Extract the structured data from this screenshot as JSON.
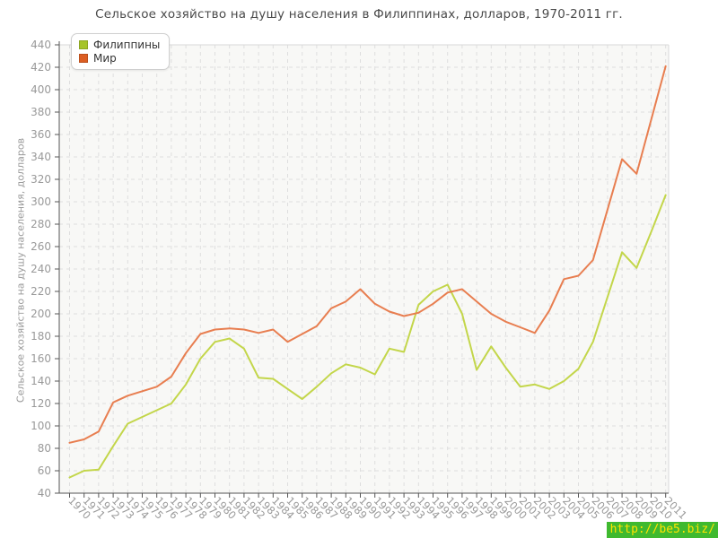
{
  "title": "Сельское хозяйство на душу населения в Филиппинах, долларов, 1970-2011 гг.",
  "y_axis_title": "Сельское хозяйство на душу населения, долларов",
  "watermark": "http://be5.biz/",
  "legend": [
    {
      "label": "Филиппины",
      "color": "#a6c42a"
    },
    {
      "label": "Мир",
      "color": "#dc5e23"
    }
  ],
  "chart_data": {
    "type": "line",
    "x": [
      "1970",
      "1971",
      "1972",
      "1973",
      "1974",
      "1975",
      "1976",
      "1977",
      "1978",
      "1979",
      "1980",
      "1981",
      "1982",
      "1983",
      "1984",
      "1985",
      "1986",
      "1987",
      "1988",
      "1989",
      "1990",
      "1991",
      "1992",
      "1993",
      "1994",
      "1995",
      "1996",
      "1997",
      "1998",
      "1999",
      "2000",
      "2001",
      "2002",
      "2003",
      "2004",
      "2005",
      "2006",
      "2007",
      "2008",
      "2009",
      "2010",
      "2011"
    ],
    "series": [
      {
        "name": "Филиппины",
        "color": "#c3d64a",
        "values": [
          54,
          60,
          61,
          82,
          102,
          108,
          114,
          120,
          137,
          160,
          175,
          178,
          169,
          143,
          142,
          133,
          124,
          135,
          147,
          155,
          152,
          146,
          169,
          166,
          208,
          220,
          226,
          200,
          150,
          171,
          152,
          135,
          137,
          133,
          140,
          151,
          175,
          215,
          255,
          241,
          273,
          306
        ]
      },
      {
        "name": "Мир",
        "color": "#e87e50",
        "values": [
          85,
          88,
          95,
          121,
          127,
          131,
          135,
          144,
          165,
          182,
          186,
          187,
          186,
          183,
          186,
          175,
          182,
          189,
          205,
          211,
          222,
          209,
          202,
          198,
          201,
          209,
          219,
          222,
          211,
          200,
          193,
          188,
          183,
          203,
          231,
          234,
          248,
          293,
          338,
          325,
          373,
          421
        ]
      }
    ],
    "ylim": [
      40,
      440
    ],
    "y_ticks": [
      40,
      60,
      80,
      100,
      120,
      140,
      160,
      180,
      200,
      220,
      240,
      260,
      280,
      300,
      320,
      340,
      360,
      380,
      400,
      420,
      440
    ],
    "grid": "dashed",
    "legend_position": "top-left",
    "plot_bg": "#f8f8f6",
    "grid_color": "#dedede",
    "axis_color": "#555555",
    "tick_label_color": "#999999"
  }
}
